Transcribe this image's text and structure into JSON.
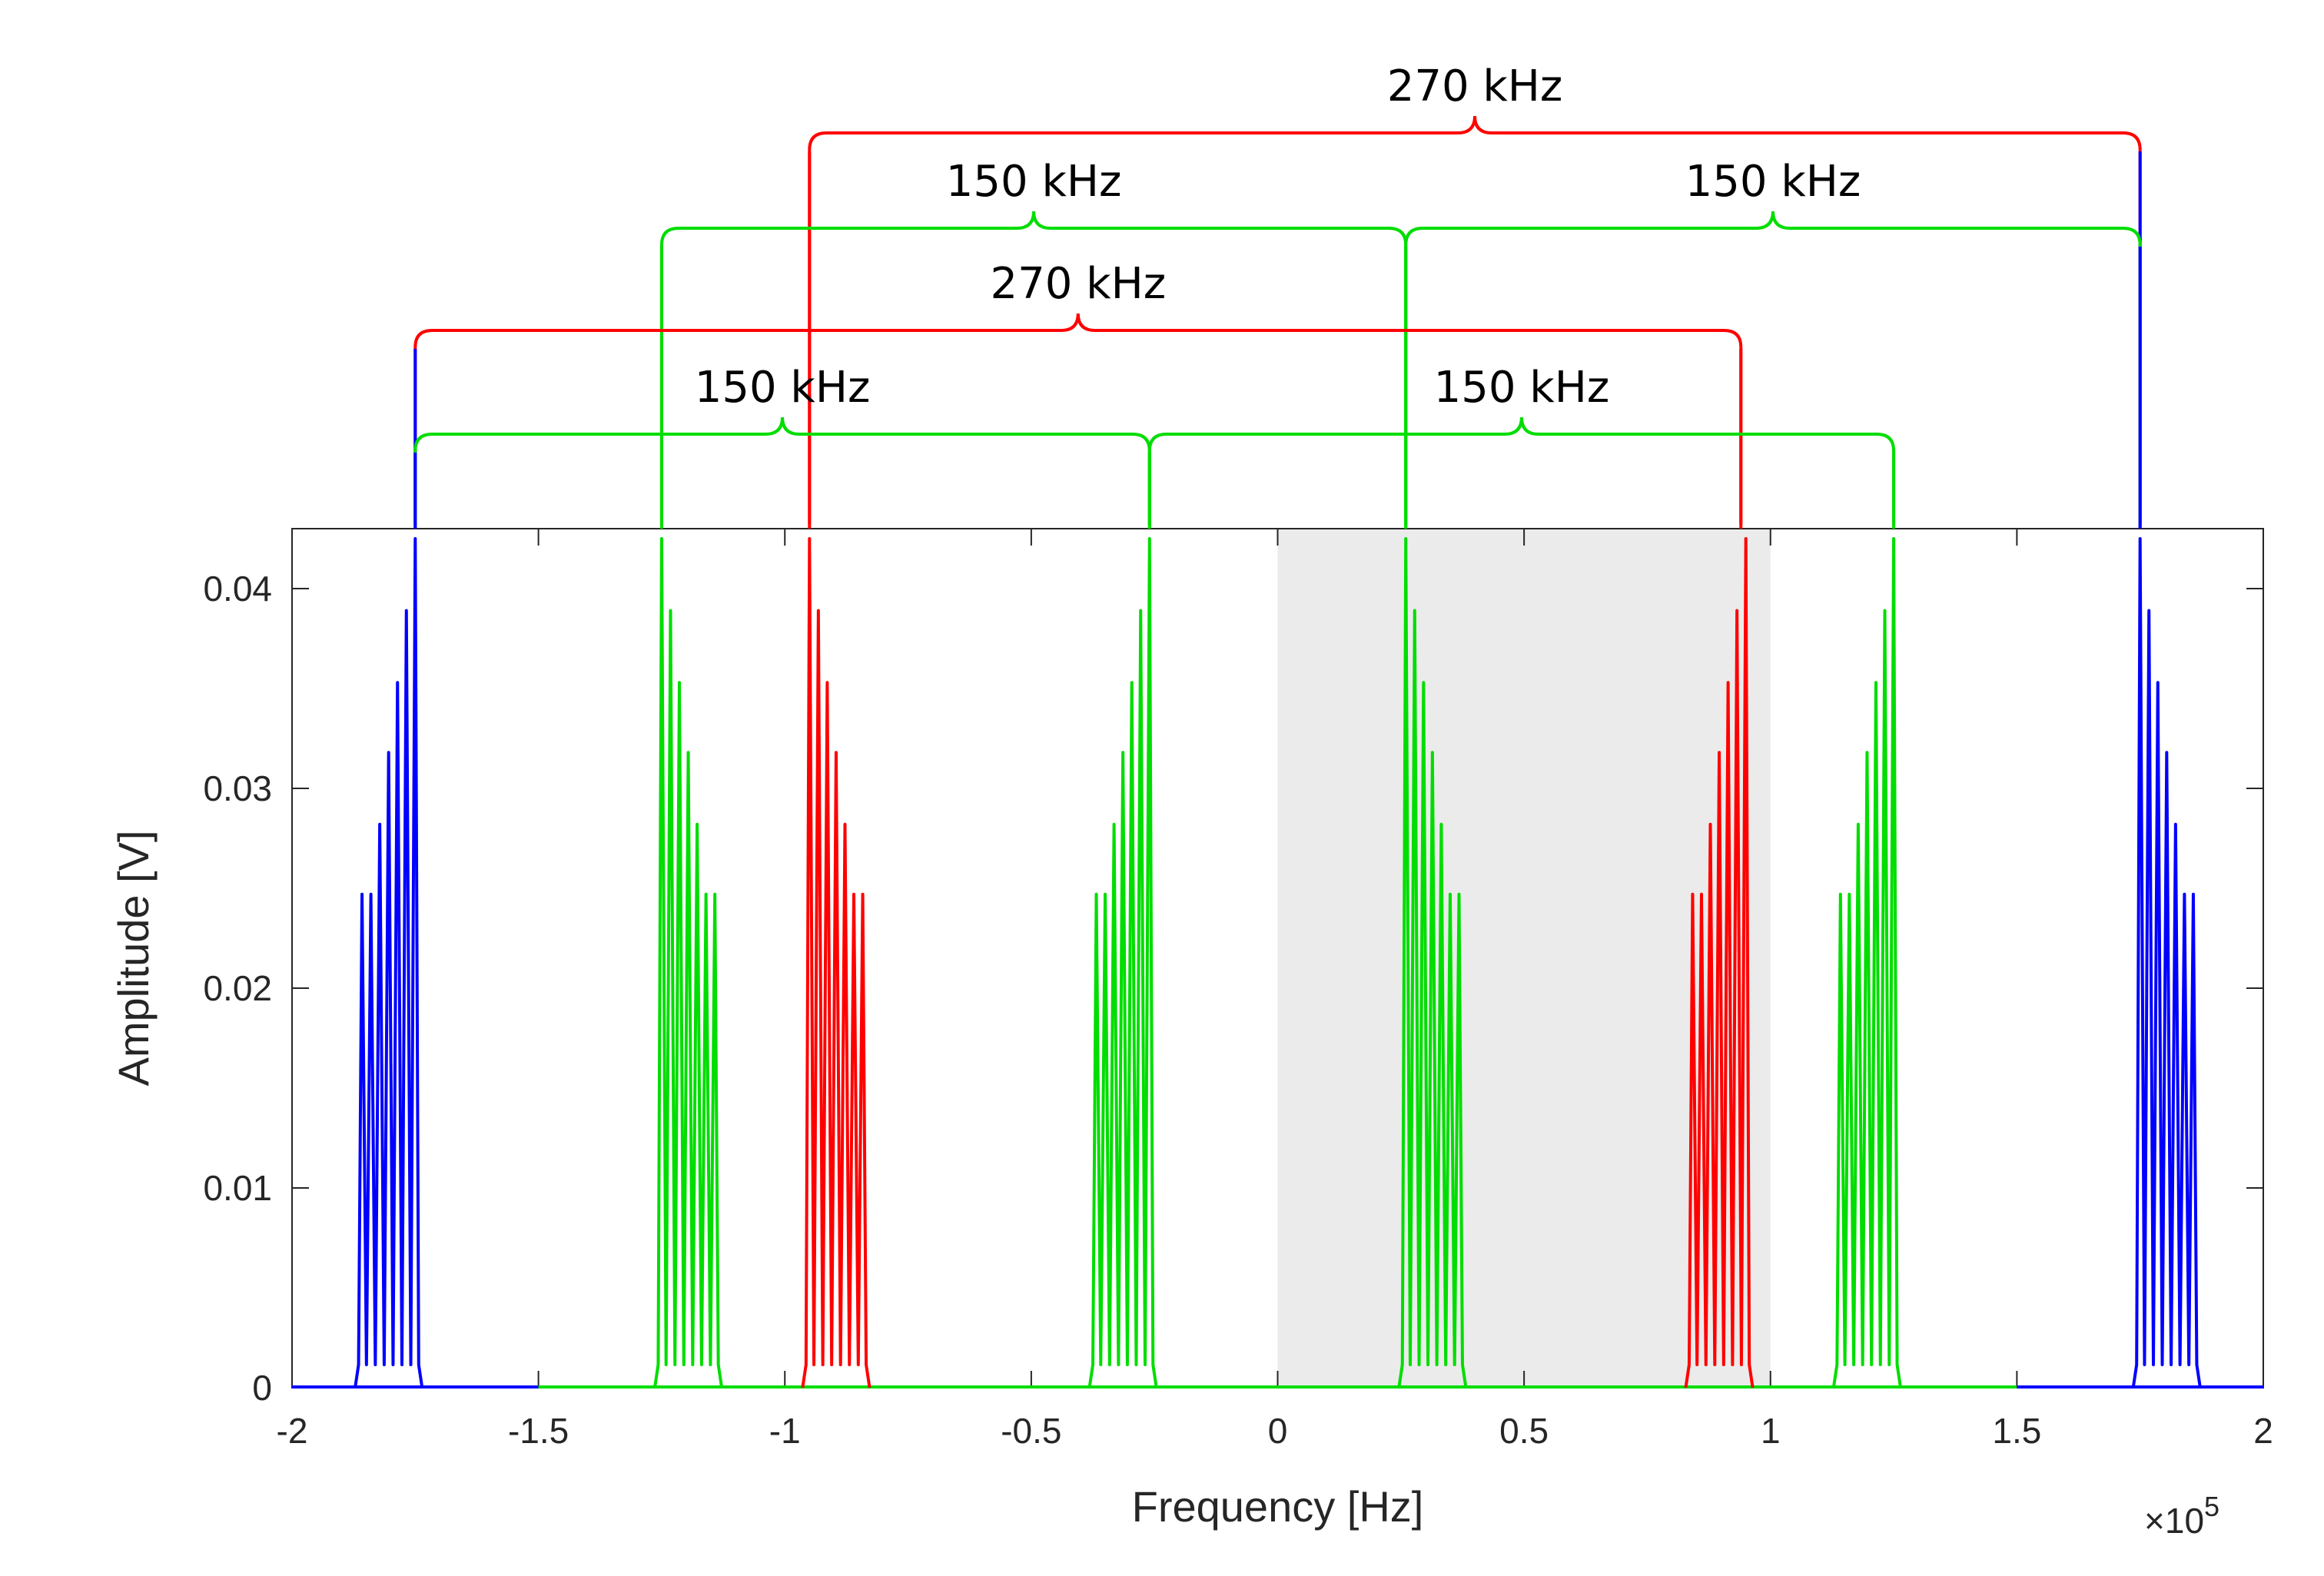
{
  "chart_data": {
    "type": "line",
    "xlabel": "Frequency [Hz]",
    "ylabel": "Amplitude [V]",
    "xlim": [
      -200000,
      200000
    ],
    "ylim": [
      0,
      0.043
    ],
    "x_multiplier_label": "×10",
    "x_multiplier_exponent": "5",
    "x_ticks": [
      {
        "value": -200000,
        "label": "-2"
      },
      {
        "value": -150000,
        "label": "-1.5"
      },
      {
        "value": -100000,
        "label": "-1"
      },
      {
        "value": -50000,
        "label": "-0.5"
      },
      {
        "value": 0,
        "label": "0"
      },
      {
        "value": 50000,
        "label": "0.5"
      },
      {
        "value": 100000,
        "label": "1"
      },
      {
        "value": 150000,
        "label": "1.5"
      },
      {
        "value": 200000,
        "label": "2"
      }
    ],
    "y_ticks": [
      {
        "value": 0,
        "label": "0"
      },
      {
        "value": 0.01,
        "label": "0.01"
      },
      {
        "value": 0.02,
        "label": "0.02"
      },
      {
        "value": 0.03,
        "label": "0.03"
      },
      {
        "value": 0.04,
        "label": "0.04"
      }
    ],
    "shaded_region": {
      "x0": 0,
      "x1": 100000,
      "color": "#ebebeb"
    },
    "colors": {
      "blue": "#0000ff",
      "green": "#00dd00",
      "red": "#ff0000"
    },
    "baselines": [
      {
        "name": "blue",
        "color": "blue",
        "x0": -200000,
        "x1": -150000
      },
      {
        "name": "green",
        "color": "green",
        "x0": -150000,
        "x1": 150000
      },
      {
        "name": "blue",
        "color": "blue",
        "x0": 150000,
        "x1": 200000
      }
    ],
    "series": [
      {
        "name": "blue-left",
        "color": "blue",
        "center": -175000,
        "peaks": [
          -175000,
          -176800,
          -178600,
          -180400,
          -182200,
          -184000,
          -185800
        ],
        "amplitudes": [
          0.0425,
          0.0389,
          0.0353,
          0.0318,
          0.0282,
          0.0247,
          0.0247
        ]
      },
      {
        "name": "green-1",
        "color": "green",
        "center": -125000,
        "peaks": [
          -125000,
          -123200,
          -121400,
          -119600,
          -117800,
          -116000,
          -114200
        ],
        "amplitudes": [
          0.0425,
          0.0389,
          0.0353,
          0.0318,
          0.0282,
          0.0247,
          0.0247
        ]
      },
      {
        "name": "red-left",
        "color": "red",
        "center": -95000,
        "peaks": [
          -95000,
          -93200,
          -91400,
          -89600,
          -87800,
          -86000,
          -84200
        ],
        "amplitudes": [
          0.0425,
          0.0389,
          0.0353,
          0.0318,
          0.0282,
          0.0247,
          0.0247
        ]
      },
      {
        "name": "green-2",
        "color": "green",
        "center": -26000,
        "peaks": [
          -26000,
          -27800,
          -29600,
          -31400,
          -33200,
          -35000,
          -36800
        ],
        "amplitudes": [
          0.0425,
          0.0389,
          0.0353,
          0.0318,
          0.0282,
          0.0247,
          0.0247
        ]
      },
      {
        "name": "green-3",
        "color": "green",
        "center": 26000,
        "peaks": [
          26000,
          27800,
          29600,
          31400,
          33200,
          35000,
          36800
        ],
        "amplitudes": [
          0.0425,
          0.0389,
          0.0353,
          0.0318,
          0.0282,
          0.0247,
          0.0247
        ]
      },
      {
        "name": "red-right",
        "color": "red",
        "center": 95000,
        "peaks": [
          95000,
          93200,
          91400,
          89600,
          87800,
          86000,
          84200
        ],
        "amplitudes": [
          0.0425,
          0.0389,
          0.0353,
          0.0318,
          0.0282,
          0.0247,
          0.0247
        ]
      },
      {
        "name": "green-4",
        "color": "green",
        "center": 125000,
        "peaks": [
          125000,
          123200,
          121400,
          119600,
          117800,
          116000,
          114200
        ],
        "amplitudes": [
          0.0425,
          0.0389,
          0.0353,
          0.0318,
          0.0282,
          0.0247,
          0.0247
        ]
      },
      {
        "name": "blue-right",
        "color": "blue",
        "center": 175000,
        "peaks": [
          175000,
          176800,
          178600,
          180400,
          182200,
          184000,
          185800
        ],
        "amplitudes": [
          0.0425,
          0.0389,
          0.0353,
          0.0318,
          0.0282,
          0.0247,
          0.0247
        ]
      }
    ],
    "annotations": [
      {
        "label": "270 kHz",
        "color": "red",
        "x0": -95000,
        "x1": 175000,
        "level": 4,
        "left_stem": "red",
        "right_stem": "blue"
      },
      {
        "label": "150 kHz",
        "color": "green",
        "x0": -125000,
        "x1": 26000,
        "level": 3,
        "left_stem": "green",
        "right_stem": "green"
      },
      {
        "label": "150 kHz",
        "color": "green",
        "x0": 26000,
        "x1": 175000,
        "level": 3,
        "left_stem": "green",
        "right_stem": "blue"
      },
      {
        "label": "270 kHz",
        "color": "red",
        "x0": -175000,
        "x1": 94000,
        "level": 2,
        "left_stem": "blue",
        "right_stem": "red"
      },
      {
        "label": "150 kHz",
        "color": "green",
        "x0": -175000,
        "x1": -26000,
        "level": 1,
        "left_stem": "blue",
        "right_stem": "green"
      },
      {
        "label": "150 kHz",
        "color": "green",
        "x0": -26000,
        "x1": 125000,
        "level": 1,
        "left_stem": "green",
        "right_stem": "green"
      }
    ]
  }
}
